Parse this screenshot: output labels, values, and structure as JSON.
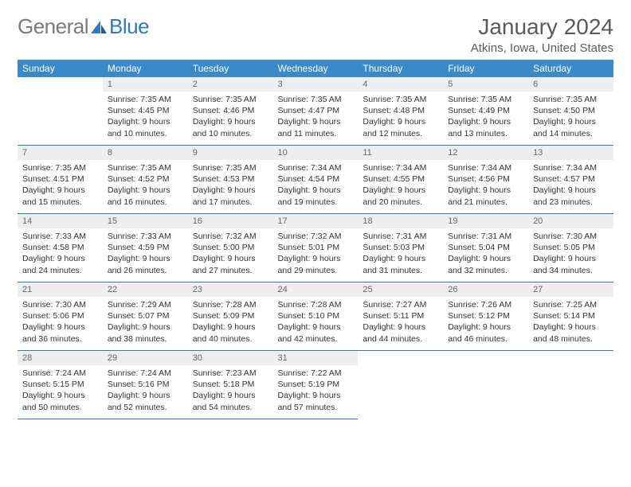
{
  "logo": {
    "general": "General",
    "blue": "Blue"
  },
  "title": "January 2024",
  "location": "Atkins, Iowa, United States",
  "colors": {
    "header_bg": "#3a8ac9",
    "header_fg": "#ffffff",
    "cell_border": "#2f7bbf",
    "daynum_bg": "#eeeeee",
    "daynum_fg": "#666666",
    "body_fg": "#333333",
    "logo_gray": "#7a7a7a",
    "logo_blue": "#2f7bbf"
  },
  "weekdays": [
    "Sunday",
    "Monday",
    "Tuesday",
    "Wednesday",
    "Thursday",
    "Friday",
    "Saturday"
  ],
  "weeks": [
    [
      {
        "day": "",
        "lines": []
      },
      {
        "day": "1",
        "lines": [
          "Sunrise: 7:35 AM",
          "Sunset: 4:45 PM",
          "Daylight: 9 hours",
          "and 10 minutes."
        ]
      },
      {
        "day": "2",
        "lines": [
          "Sunrise: 7:35 AM",
          "Sunset: 4:46 PM",
          "Daylight: 9 hours",
          "and 10 minutes."
        ]
      },
      {
        "day": "3",
        "lines": [
          "Sunrise: 7:35 AM",
          "Sunset: 4:47 PM",
          "Daylight: 9 hours",
          "and 11 minutes."
        ]
      },
      {
        "day": "4",
        "lines": [
          "Sunrise: 7:35 AM",
          "Sunset: 4:48 PM",
          "Daylight: 9 hours",
          "and 12 minutes."
        ]
      },
      {
        "day": "5",
        "lines": [
          "Sunrise: 7:35 AM",
          "Sunset: 4:49 PM",
          "Daylight: 9 hours",
          "and 13 minutes."
        ]
      },
      {
        "day": "6",
        "lines": [
          "Sunrise: 7:35 AM",
          "Sunset: 4:50 PM",
          "Daylight: 9 hours",
          "and 14 minutes."
        ]
      }
    ],
    [
      {
        "day": "7",
        "lines": [
          "Sunrise: 7:35 AM",
          "Sunset: 4:51 PM",
          "Daylight: 9 hours",
          "and 15 minutes."
        ]
      },
      {
        "day": "8",
        "lines": [
          "Sunrise: 7:35 AM",
          "Sunset: 4:52 PM",
          "Daylight: 9 hours",
          "and 16 minutes."
        ]
      },
      {
        "day": "9",
        "lines": [
          "Sunrise: 7:35 AM",
          "Sunset: 4:53 PM",
          "Daylight: 9 hours",
          "and 17 minutes."
        ]
      },
      {
        "day": "10",
        "lines": [
          "Sunrise: 7:34 AM",
          "Sunset: 4:54 PM",
          "Daylight: 9 hours",
          "and 19 minutes."
        ]
      },
      {
        "day": "11",
        "lines": [
          "Sunrise: 7:34 AM",
          "Sunset: 4:55 PM",
          "Daylight: 9 hours",
          "and 20 minutes."
        ]
      },
      {
        "day": "12",
        "lines": [
          "Sunrise: 7:34 AM",
          "Sunset: 4:56 PM",
          "Daylight: 9 hours",
          "and 21 minutes."
        ]
      },
      {
        "day": "13",
        "lines": [
          "Sunrise: 7:34 AM",
          "Sunset: 4:57 PM",
          "Daylight: 9 hours",
          "and 23 minutes."
        ]
      }
    ],
    [
      {
        "day": "14",
        "lines": [
          "Sunrise: 7:33 AM",
          "Sunset: 4:58 PM",
          "Daylight: 9 hours",
          "and 24 minutes."
        ]
      },
      {
        "day": "15",
        "lines": [
          "Sunrise: 7:33 AM",
          "Sunset: 4:59 PM",
          "Daylight: 9 hours",
          "and 26 minutes."
        ]
      },
      {
        "day": "16",
        "lines": [
          "Sunrise: 7:32 AM",
          "Sunset: 5:00 PM",
          "Daylight: 9 hours",
          "and 27 minutes."
        ]
      },
      {
        "day": "17",
        "lines": [
          "Sunrise: 7:32 AM",
          "Sunset: 5:01 PM",
          "Daylight: 9 hours",
          "and 29 minutes."
        ]
      },
      {
        "day": "18",
        "lines": [
          "Sunrise: 7:31 AM",
          "Sunset: 5:03 PM",
          "Daylight: 9 hours",
          "and 31 minutes."
        ]
      },
      {
        "day": "19",
        "lines": [
          "Sunrise: 7:31 AM",
          "Sunset: 5:04 PM",
          "Daylight: 9 hours",
          "and 32 minutes."
        ]
      },
      {
        "day": "20",
        "lines": [
          "Sunrise: 7:30 AM",
          "Sunset: 5:05 PM",
          "Daylight: 9 hours",
          "and 34 minutes."
        ]
      }
    ],
    [
      {
        "day": "21",
        "lines": [
          "Sunrise: 7:30 AM",
          "Sunset: 5:06 PM",
          "Daylight: 9 hours",
          "and 36 minutes."
        ]
      },
      {
        "day": "22",
        "lines": [
          "Sunrise: 7:29 AM",
          "Sunset: 5:07 PM",
          "Daylight: 9 hours",
          "and 38 minutes."
        ]
      },
      {
        "day": "23",
        "lines": [
          "Sunrise: 7:28 AM",
          "Sunset: 5:09 PM",
          "Daylight: 9 hours",
          "and 40 minutes."
        ]
      },
      {
        "day": "24",
        "lines": [
          "Sunrise: 7:28 AM",
          "Sunset: 5:10 PM",
          "Daylight: 9 hours",
          "and 42 minutes."
        ]
      },
      {
        "day": "25",
        "lines": [
          "Sunrise: 7:27 AM",
          "Sunset: 5:11 PM",
          "Daylight: 9 hours",
          "and 44 minutes."
        ]
      },
      {
        "day": "26",
        "lines": [
          "Sunrise: 7:26 AM",
          "Sunset: 5:12 PM",
          "Daylight: 9 hours",
          "and 46 minutes."
        ]
      },
      {
        "day": "27",
        "lines": [
          "Sunrise: 7:25 AM",
          "Sunset: 5:14 PM",
          "Daylight: 9 hours",
          "and 48 minutes."
        ]
      }
    ],
    [
      {
        "day": "28",
        "lines": [
          "Sunrise: 7:24 AM",
          "Sunset: 5:15 PM",
          "Daylight: 9 hours",
          "and 50 minutes."
        ]
      },
      {
        "day": "29",
        "lines": [
          "Sunrise: 7:24 AM",
          "Sunset: 5:16 PM",
          "Daylight: 9 hours",
          "and 52 minutes."
        ]
      },
      {
        "day": "30",
        "lines": [
          "Sunrise: 7:23 AM",
          "Sunset: 5:18 PM",
          "Daylight: 9 hours",
          "and 54 minutes."
        ]
      },
      {
        "day": "31",
        "lines": [
          "Sunrise: 7:22 AM",
          "Sunset: 5:19 PM",
          "Daylight: 9 hours",
          "and 57 minutes."
        ]
      },
      {
        "day": "",
        "lines": []
      },
      {
        "day": "",
        "lines": []
      },
      {
        "day": "",
        "lines": []
      }
    ]
  ]
}
